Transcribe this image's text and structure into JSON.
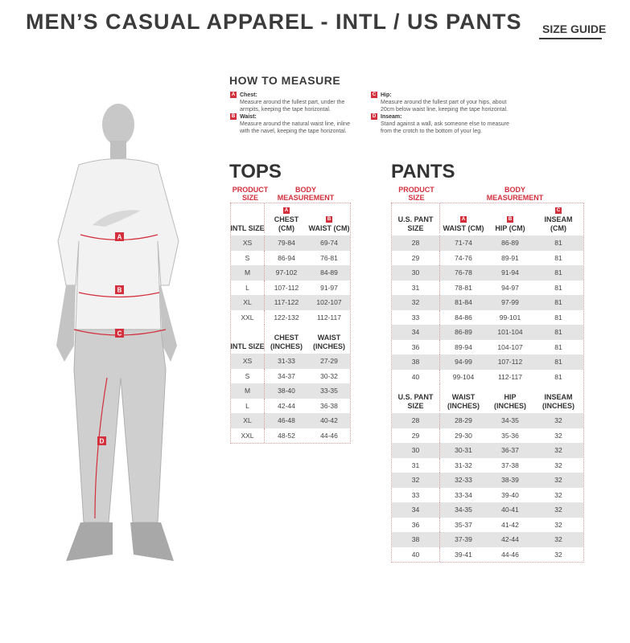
{
  "header": {
    "title": "MEN’S CASUAL APPAREL - INTL / US PANTS",
    "size_guide": "SIZE GUIDE"
  },
  "how_to_measure": {
    "title": "HOW TO MEASURE",
    "items": [
      {
        "letter": "A",
        "label": "Chest:",
        "desc": "Measure around the fullest part, under the armpits, keeping the tape horizontal."
      },
      {
        "letter": "B",
        "label": "Waist:",
        "desc": "Measure around the natural waist line, inline with the navel, keeping the tape horizontal."
      },
      {
        "letter": "C",
        "label": "Hip:",
        "desc": "Measure around the fullest part of your hips, about 20cm below waist line, keeping the tape horizontal."
      },
      {
        "letter": "D",
        "label": "Inseam:",
        "desc": "Stand against a wall, ask someone else to measure from the crotch to the bottom of your leg."
      }
    ]
  },
  "figure": {
    "labels": [
      "A",
      "B",
      "C",
      "D"
    ]
  },
  "tops": {
    "title": "TOPS",
    "product_size": "PRODUCT SIZE",
    "body_measurement": "BODY MEASUREMENT",
    "cm": {
      "headers": [
        "INTL SIZE",
        "CHEST (CM)",
        "WAIST (CM)"
      ],
      "letters": [
        "",
        "A",
        "B"
      ],
      "rows": [
        [
          "XS",
          "79-84",
          "69-74"
        ],
        [
          "S",
          "86-94",
          "76-81"
        ],
        [
          "M",
          "97-102",
          "84-89"
        ],
        [
          "L",
          "107-112",
          "91-97"
        ],
        [
          "XL",
          "117-122",
          "102-107"
        ],
        [
          "XXL",
          "122-132",
          "112-117"
        ]
      ]
    },
    "inches": {
      "headers": [
        "INTL SIZE",
        "CHEST (INCHES)",
        "WAIST (INCHES)"
      ],
      "rows": [
        [
          "XS",
          "31-33",
          "27-29"
        ],
        [
          "S",
          "34-37",
          "30-32"
        ],
        [
          "M",
          "38-40",
          "33-35"
        ],
        [
          "L",
          "42-44",
          "36-38"
        ],
        [
          "XL",
          "46-48",
          "40-42"
        ],
        [
          "XXL",
          "48-52",
          "44-46"
        ]
      ]
    }
  },
  "pants": {
    "title": "PANTS",
    "product_size": "PRODUCT SIZE",
    "body_measurement": "BODY MEASUREMENT",
    "cm": {
      "headers": [
        "U.S. PANT SIZE",
        "WAIST (CM)",
        "HIP (CM)",
        "INSEAM (CM)"
      ],
      "letters": [
        "",
        "A",
        "B",
        "C"
      ],
      "rows": [
        [
          "28",
          "71-74",
          "86-89",
          "81"
        ],
        [
          "29",
          "74-76",
          "89-91",
          "81"
        ],
        [
          "30",
          "76-78",
          "91-94",
          "81"
        ],
        [
          "31",
          "78-81",
          "94-97",
          "81"
        ],
        [
          "32",
          "81-84",
          "97-99",
          "81"
        ],
        [
          "33",
          "84-86",
          "99-101",
          "81"
        ],
        [
          "34",
          "86-89",
          "101-104",
          "81"
        ],
        [
          "36",
          "89-94",
          "104-107",
          "81"
        ],
        [
          "38",
          "94-99",
          "107-112",
          "81"
        ],
        [
          "40",
          "99-104",
          "112-117",
          "81"
        ]
      ]
    },
    "inches": {
      "headers": [
        "U.S. PANT SIZE",
        "WAIST (INCHES)",
        "HIP (INCHES)",
        "INSEAM (INCHES)"
      ],
      "rows": [
        [
          "28",
          "28-29",
          "34-35",
          "32"
        ],
        [
          "29",
          "29-30",
          "35-36",
          "32"
        ],
        [
          "30",
          "30-31",
          "36-37",
          "32"
        ],
        [
          "31",
          "31-32",
          "37-38",
          "32"
        ],
        [
          "32",
          "32-33",
          "38-39",
          "32"
        ],
        [
          "33",
          "33-34",
          "39-40",
          "32"
        ],
        [
          "34",
          "34-35",
          "40-41",
          "32"
        ],
        [
          "36",
          "35-37",
          "41-42",
          "32"
        ],
        [
          "38",
          "37-39",
          "42-44",
          "32"
        ],
        [
          "40",
          "39-41",
          "44-46",
          "32"
        ]
      ]
    }
  },
  "colors": {
    "accent": "#d32f3c",
    "shade": "#e4e4e4",
    "text": "#3b3b3b"
  }
}
